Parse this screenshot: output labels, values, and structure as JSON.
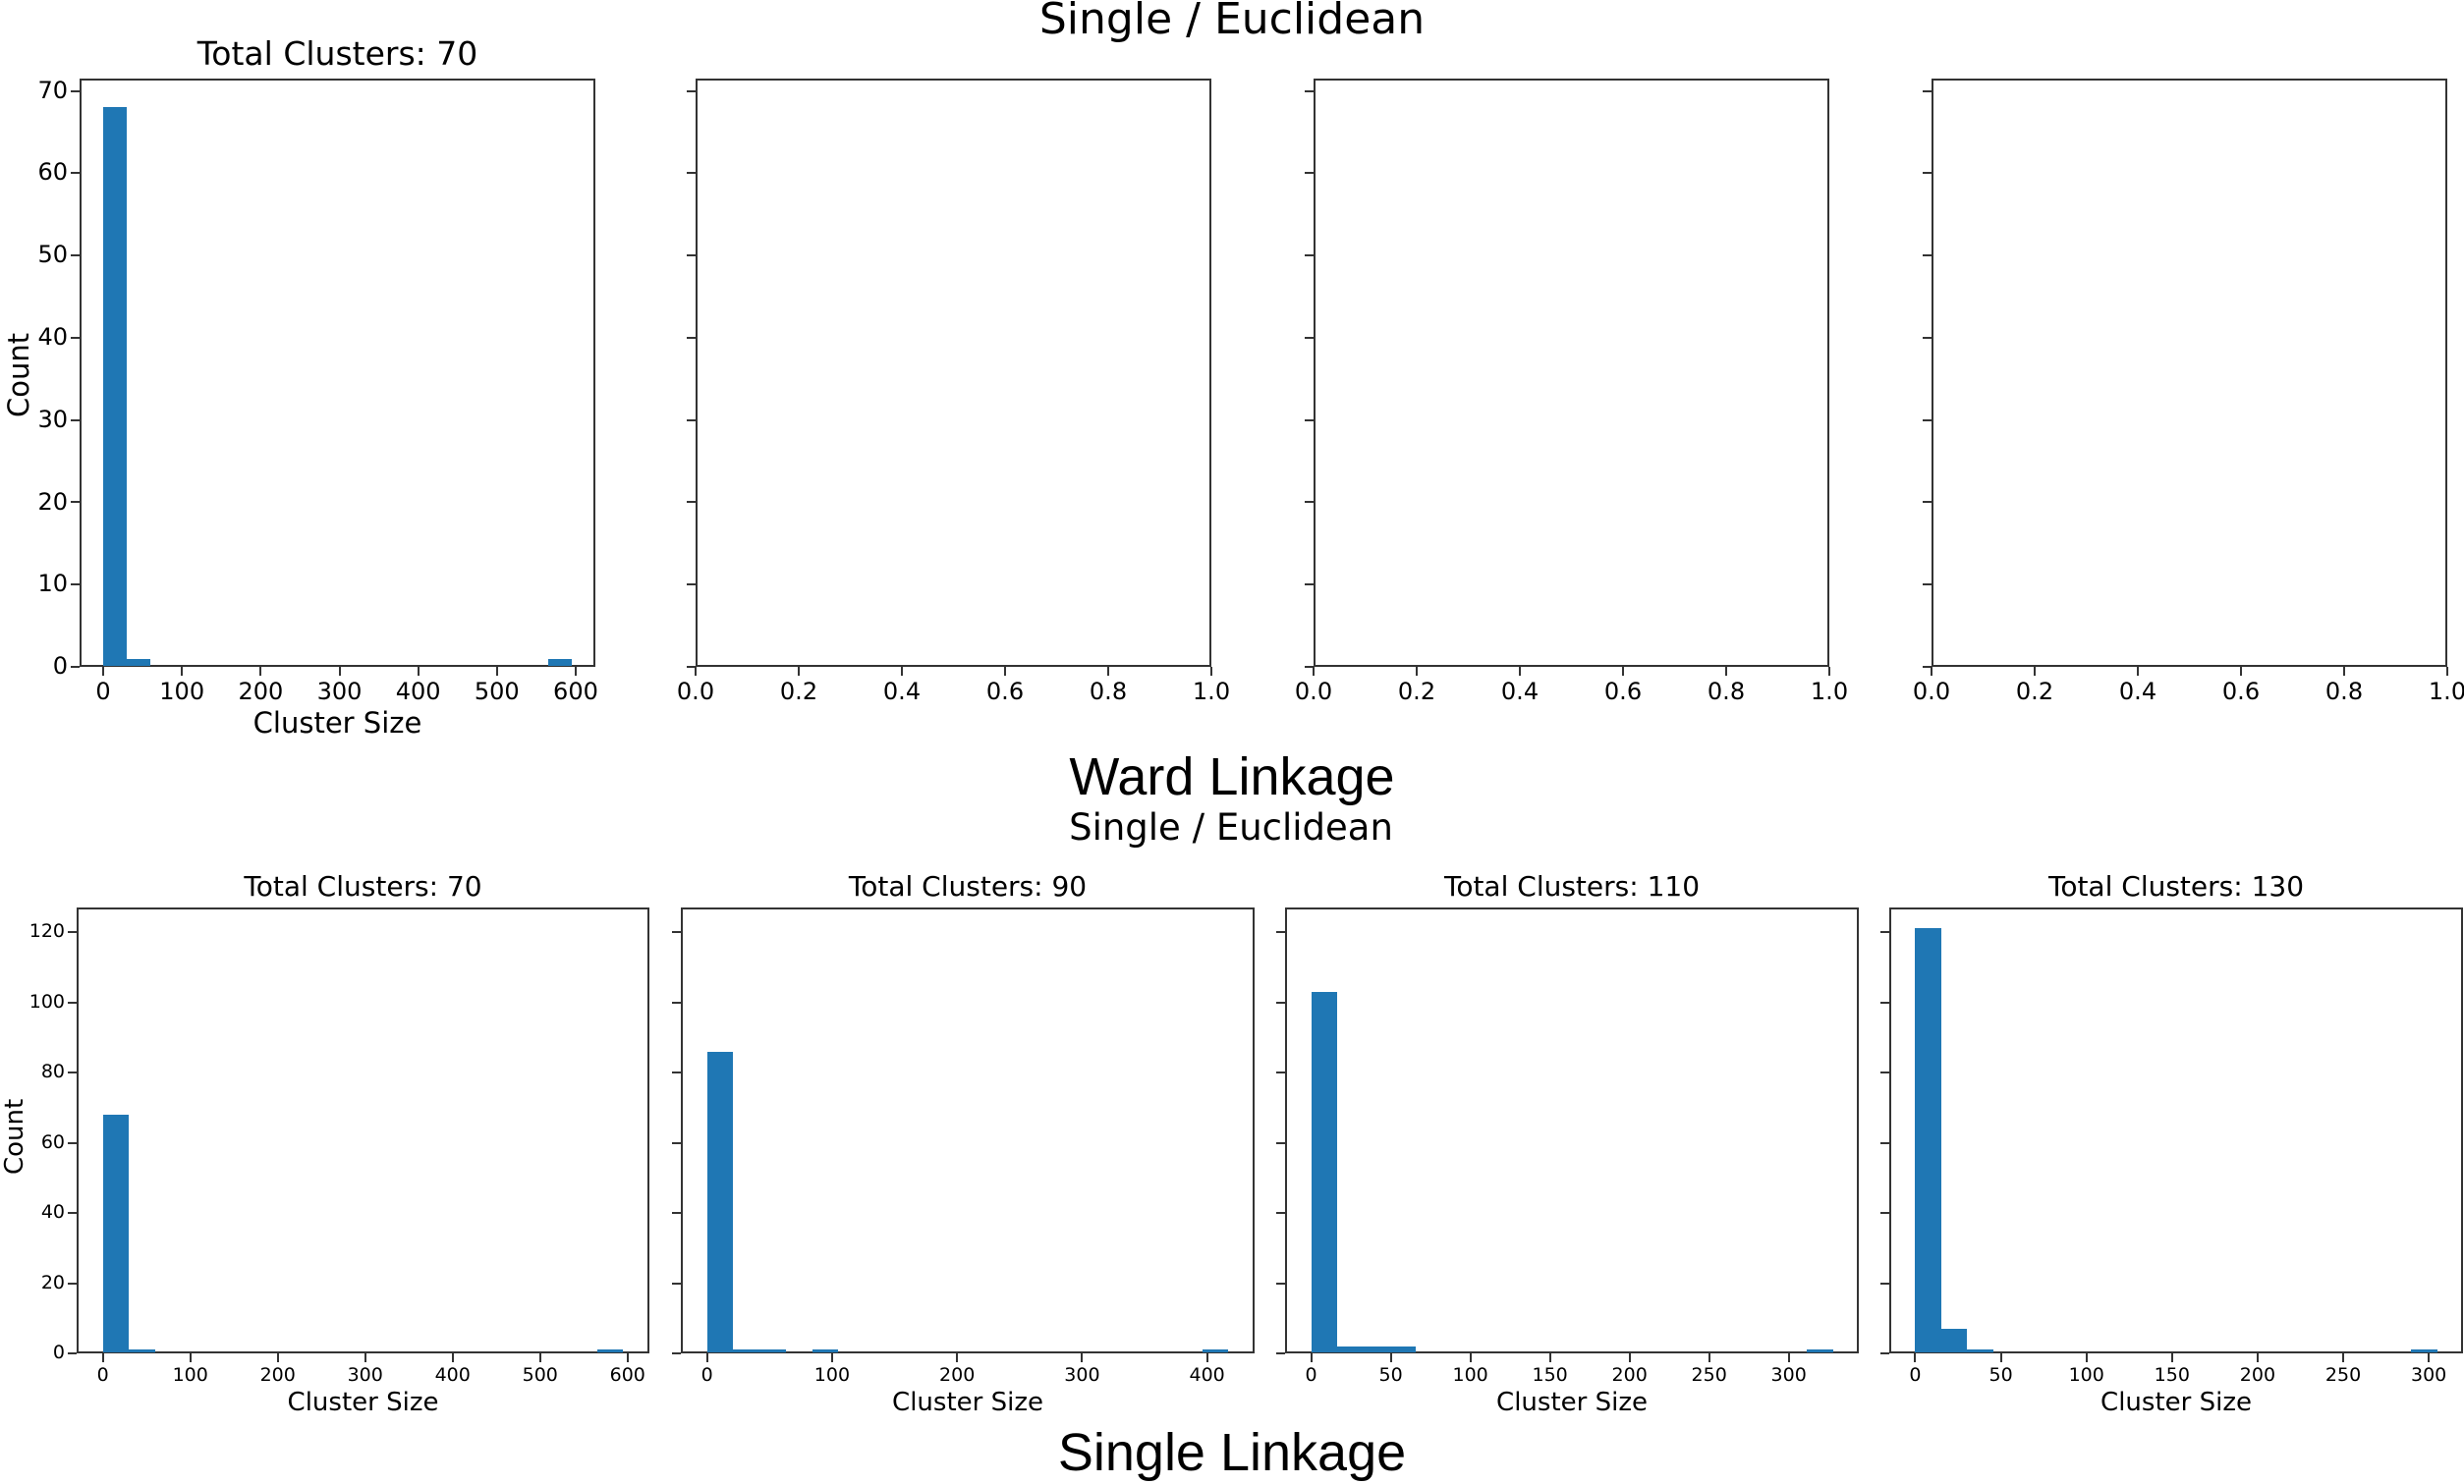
{
  "figure": {
    "top_suptitle": "Single / Euclidean",
    "middle_title": "Ward Linkage",
    "middle_subtitle": "Single / Euclidean",
    "bottom_title": "Single Linkage",
    "bar_color": "#1f77b4"
  },
  "chart_data": [
    {
      "type": "bar",
      "group": "Ward Linkage",
      "title": "Total Clusters: 70",
      "xlabel": "Cluster Size",
      "ylabel": "Count",
      "xlim": [
        -30,
        625
      ],
      "ylim": [
        0,
        71.5
      ],
      "xticks": [
        0,
        100,
        200,
        300,
        400,
        500,
        600
      ],
      "yticks": [
        0,
        10,
        20,
        30,
        40,
        50,
        60,
        70
      ],
      "bins": [
        {
          "x0": 0,
          "x1": 30,
          "count": 68
        },
        {
          "x0": 30,
          "x1": 60,
          "count": 1
        },
        {
          "x0": 565,
          "x1": 595,
          "count": 1
        }
      ]
    },
    {
      "type": "bar",
      "group": "Ward Linkage",
      "title": "",
      "xlabel": "",
      "ylabel": "",
      "xlim": [
        0,
        1
      ],
      "xticks": [
        "0.0",
        "0.2",
        "0.4",
        "0.6",
        "0.8",
        "1.0"
      ],
      "bins": []
    },
    {
      "type": "bar",
      "group": "Ward Linkage",
      "title": "",
      "xlabel": "",
      "ylabel": "",
      "xlim": [
        0,
        1
      ],
      "xticks": [
        "0.0",
        "0.2",
        "0.4",
        "0.6",
        "0.8",
        "1.0"
      ],
      "bins": []
    },
    {
      "type": "bar",
      "group": "Ward Linkage",
      "title": "",
      "xlabel": "",
      "ylabel": "",
      "xlim": [
        0,
        1
      ],
      "xticks": [
        "0.0",
        "0.2",
        "0.4",
        "0.6",
        "0.8",
        "1.0"
      ],
      "bins": []
    },
    {
      "type": "bar",
      "group": "Single Linkage",
      "title": "Total Clusters: 70",
      "xlabel": "Cluster Size",
      "ylabel": "Count",
      "xlim": [
        -30,
        625
      ],
      "ylim": [
        0,
        127
      ],
      "xticks": [
        0,
        100,
        200,
        300,
        400,
        500,
        600
      ],
      "yticks": [
        0,
        20,
        40,
        60,
        80,
        100,
        120
      ],
      "bins": [
        {
          "x0": 0,
          "x1": 30,
          "count": 68
        },
        {
          "x0": 30,
          "x1": 60,
          "count": 1
        },
        {
          "x0": 565,
          "x1": 595,
          "count": 1
        }
      ]
    },
    {
      "type": "bar",
      "group": "Single Linkage",
      "title": "Total Clusters: 90",
      "xlabel": "Cluster Size",
      "ylabel": "",
      "xlim": [
        -21,
        438
      ],
      "ylim": [
        0,
        127
      ],
      "xticks": [
        0,
        100,
        200,
        300,
        400
      ],
      "yticks": [
        0,
        20,
        40,
        60,
        80,
        100,
        120
      ],
      "bins": [
        {
          "x0": 0,
          "x1": 21,
          "count": 86
        },
        {
          "x0": 21,
          "x1": 42,
          "count": 1
        },
        {
          "x0": 42,
          "x1": 63,
          "count": 1
        },
        {
          "x0": 84,
          "x1": 105,
          "count": 1
        },
        {
          "x0": 396,
          "x1": 417,
          "count": 1
        }
      ]
    },
    {
      "type": "bar",
      "group": "Single Linkage",
      "title": "Total Clusters: 110",
      "xlabel": "Cluster Size",
      "ylabel": "",
      "xlim": [
        -16.4,
        344
      ],
      "ylim": [
        0,
        127
      ],
      "xticks": [
        0,
        50,
        100,
        150,
        200,
        250,
        300
      ],
      "yticks": [
        0,
        20,
        40,
        60,
        80,
        100,
        120
      ],
      "bins": [
        {
          "x0": 0,
          "x1": 16.4,
          "count": 103
        },
        {
          "x0": 16.4,
          "x1": 32.8,
          "count": 2
        },
        {
          "x0": 32.8,
          "x1": 49.2,
          "count": 2
        },
        {
          "x0": 49.2,
          "x1": 65.6,
          "count": 2
        },
        {
          "x0": 311.6,
          "x1": 328,
          "count": 1
        }
      ]
    },
    {
      "type": "bar",
      "group": "Single Linkage",
      "title": "Total Clusters: 130",
      "xlabel": "Cluster Size",
      "ylabel": "",
      "xlim": [
        -15.2,
        320
      ],
      "ylim": [
        0,
        127
      ],
      "xticks": [
        0,
        50,
        100,
        150,
        200,
        250,
        300
      ],
      "yticks": [
        0,
        20,
        40,
        60,
        80,
        100,
        120
      ],
      "bins": [
        {
          "x0": 0,
          "x1": 15.2,
          "count": 121
        },
        {
          "x0": 15.2,
          "x1": 30.4,
          "count": 7
        },
        {
          "x0": 30.4,
          "x1": 45.6,
          "count": 1
        },
        {
          "x0": 289.8,
          "x1": 305,
          "count": 1
        }
      ]
    }
  ]
}
